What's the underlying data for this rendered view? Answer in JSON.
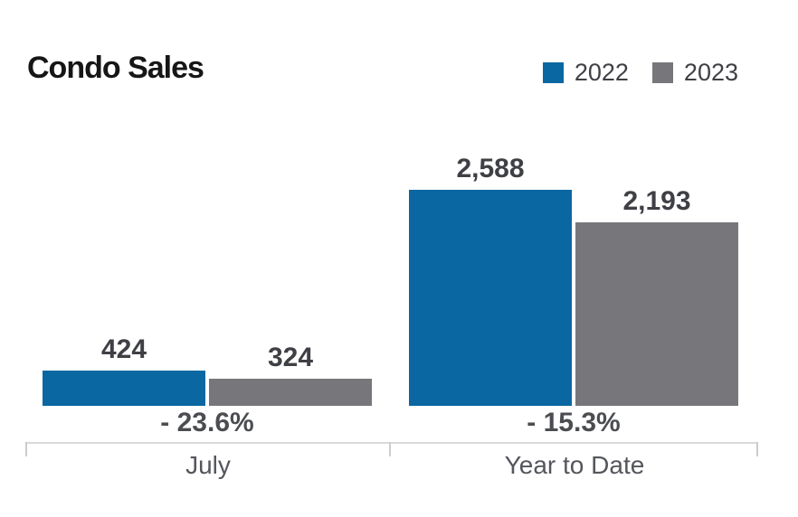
{
  "chart_data": {
    "type": "bar",
    "title": "Condo Sales",
    "categories": [
      "July",
      "Year to Date"
    ],
    "series": [
      {
        "name": "2022",
        "color": "#0b67a2",
        "values": [
          424,
          2588
        ]
      },
      {
        "name": "2023",
        "color": "#77777b",
        "values": [
          324,
          2193
        ]
      }
    ],
    "groups": [
      {
        "category": "July",
        "change": "- 23.6%",
        "bars": [
          {
            "series": "2022",
            "value": 424,
            "label": "424"
          },
          {
            "series": "2023",
            "value": 324,
            "label": "324"
          }
        ]
      },
      {
        "category": "Year to Date",
        "change": "- 15.3%",
        "bars": [
          {
            "series": "2022",
            "value": 2588,
            "label": "2,588"
          },
          {
            "series": "2023",
            "value": 2193,
            "label": "2,193"
          }
        ]
      }
    ],
    "xlabel": "",
    "ylabel": "",
    "ylim": [
      0,
      2600
    ],
    "grid": false,
    "legend_position": "top-right",
    "axis_line_color": "#d9d9d9",
    "value_label_color": "#3f4045",
    "background_color": "#ffffff"
  }
}
